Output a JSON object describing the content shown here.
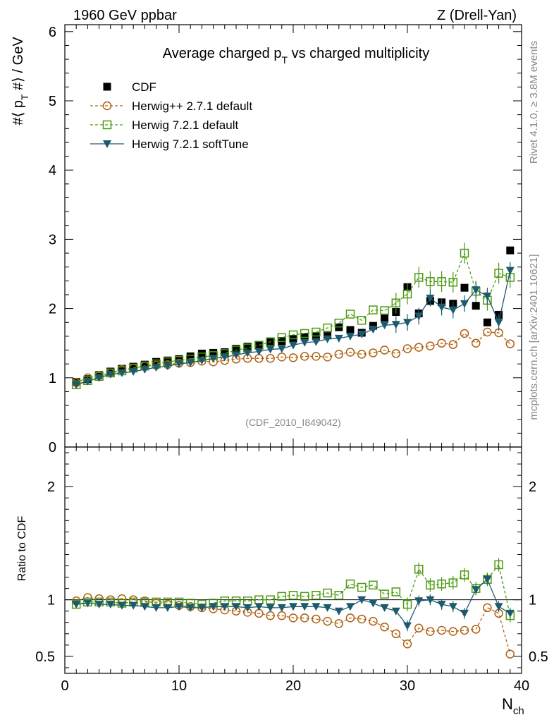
{
  "header": {
    "left": "1960 GeV ppbar",
    "right": "Z (Drell-Yan)"
  },
  "side": {
    "rivet": "Rivet 4.1.0, ≥ 3.8M events",
    "mcplots": "mcplots.cern.ch [arXiv:2401.10621]"
  },
  "chart_data": {
    "type": "scatter",
    "title": "Average charged p_T vs charged multiplicity",
    "analysis_label": "(CDF_2010_I849042)",
    "xlabel": "N_ch",
    "ylabel": "#⟨ p_T #⟩ / GeV",
    "ratio_ylabel": "Ratio to CDF",
    "xlim": [
      0,
      40
    ],
    "ylim": [
      0,
      6.1
    ],
    "ratio_ylim": [
      0.35,
      2.35
    ],
    "xticks": [
      0,
      10,
      20,
      30,
      40
    ],
    "yticks": [
      0,
      1,
      2,
      3,
      4,
      5,
      6
    ],
    "ratio_yticks": [
      0.5,
      1,
      2
    ],
    "x": [
      1,
      2,
      3,
      4,
      5,
      6,
      7,
      8,
      9,
      10,
      11,
      12,
      13,
      14,
      15,
      16,
      17,
      18,
      19,
      20,
      21,
      22,
      23,
      24,
      25,
      26,
      27,
      28,
      29,
      30,
      31,
      32,
      33,
      34,
      35,
      36,
      37,
      38,
      39
    ],
    "series": [
      {
        "name": "CDF",
        "color": "#000000",
        "marker": "filled-square",
        "values": [
          0.94,
          0.98,
          1.04,
          1.09,
          1.13,
          1.16,
          1.19,
          1.23,
          1.25,
          1.27,
          1.31,
          1.35,
          1.36,
          1.37,
          1.42,
          1.45,
          1.47,
          1.52,
          1.53,
          1.56,
          1.59,
          1.6,
          1.62,
          1.73,
          1.69,
          1.65,
          1.75,
          1.87,
          1.95,
          2.31,
          1.93,
          2.11,
          2.09,
          2.07,
          2.3,
          2.04,
          1.8,
          1.91,
          2.84
        ]
      },
      {
        "name": "Herwig++ 2.7.1 default",
        "color": "#b06010",
        "marker": "open-circle",
        "values": [
          0.93,
          1.0,
          1.03,
          1.07,
          1.12,
          1.14,
          1.17,
          1.18,
          1.19,
          1.21,
          1.22,
          1.24,
          1.23,
          1.25,
          1.27,
          1.28,
          1.28,
          1.28,
          1.3,
          1.29,
          1.31,
          1.31,
          1.3,
          1.34,
          1.37,
          1.34,
          1.36,
          1.4,
          1.35,
          1.42,
          1.44,
          1.46,
          1.5,
          1.48,
          1.64,
          1.5,
          1.66,
          1.65,
          1.49
        ],
        "ratio": [
          0.99,
          1.02,
          1.01,
          1.0,
          1.01,
          1.0,
          0.99,
          0.97,
          0.96,
          0.95,
          0.94,
          0.93,
          0.92,
          0.91,
          0.9,
          0.89,
          0.88,
          0.86,
          0.86,
          0.84,
          0.84,
          0.83,
          0.81,
          0.79,
          0.84,
          0.83,
          0.81,
          0.76,
          0.7,
          0.61,
          0.75,
          0.72,
          0.73,
          0.72,
          0.73,
          0.74,
          0.93,
          0.88,
          0.52
        ]
      },
      {
        "name": "Herwig 7.2.1 default",
        "color": "#4a9a10",
        "marker": "open-square",
        "values": [
          0.9,
          0.96,
          1.02,
          1.07,
          1.1,
          1.14,
          1.17,
          1.2,
          1.23,
          1.25,
          1.27,
          1.3,
          1.32,
          1.35,
          1.4,
          1.43,
          1.47,
          1.52,
          1.58,
          1.62,
          1.64,
          1.66,
          1.72,
          1.79,
          1.92,
          1.83,
          1.98,
          1.97,
          2.08,
          2.21,
          2.45,
          2.39,
          2.39,
          2.38,
          2.8,
          2.25,
          2.12,
          2.51,
          2.45
        ],
        "ratio": [
          0.96,
          0.98,
          0.98,
          0.98,
          0.97,
          0.98,
          0.98,
          0.98,
          0.98,
          0.98,
          0.97,
          0.96,
          0.97,
          0.99,
          0.99,
          0.99,
          1.0,
          1.0,
          1.03,
          1.04,
          1.03,
          1.04,
          1.06,
          1.04,
          1.14,
          1.11,
          1.13,
          1.05,
          1.07,
          0.96,
          1.27,
          1.13,
          1.14,
          1.15,
          1.22,
          1.1,
          1.18,
          1.31,
          0.86
        ],
        "err": 0.05
      },
      {
        "name": "Herwig 7.2.1 softTune",
        "color": "#1e5a6e",
        "marker": "filled-triangle-down",
        "values": [
          0.9,
          0.95,
          1.0,
          1.05,
          1.07,
          1.09,
          1.12,
          1.15,
          1.17,
          1.2,
          1.22,
          1.25,
          1.28,
          1.3,
          1.33,
          1.36,
          1.38,
          1.41,
          1.42,
          1.47,
          1.51,
          1.52,
          1.56,
          1.57,
          1.6,
          1.63,
          1.7,
          1.76,
          1.77,
          1.8,
          1.89,
          2.15,
          2.02,
          1.98,
          2.07,
          2.27,
          2.18,
          1.8,
          2.55
        ],
        "ratio": [
          0.96,
          0.97,
          0.96,
          0.96,
          0.95,
          0.95,
          0.94,
          0.93,
          0.93,
          0.94,
          0.93,
          0.93,
          0.94,
          0.94,
          0.94,
          0.93,
          0.94,
          0.93,
          0.93,
          0.94,
          0.94,
          0.94,
          0.93,
          0.9,
          0.94,
          1.0,
          0.97,
          0.93,
          0.9,
          0.77,
          0.99,
          1.0,
          0.96,
          0.94,
          0.88,
          1.09,
          1.18,
          0.94,
          0.88
        ],
        "err": 0.04
      }
    ]
  }
}
